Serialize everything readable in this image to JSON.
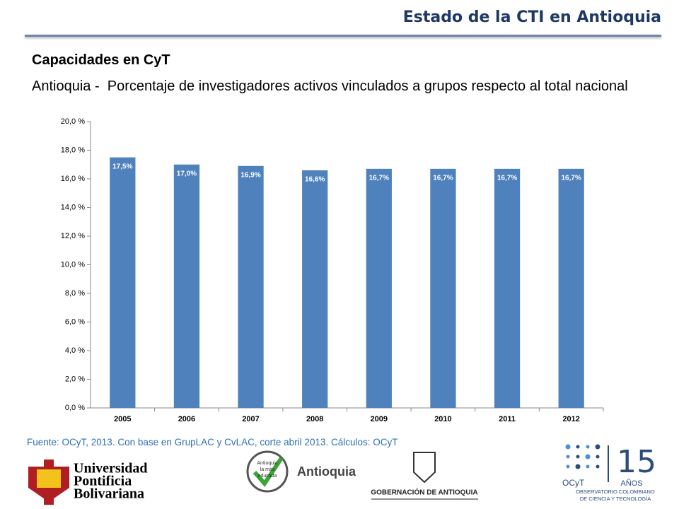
{
  "header": "Estado de la CTI en Antioquia",
  "section_title": "Capacidades en CyT",
  "chart_data": {
    "type": "bar",
    "title": "Antioquia -  Porcentaje de investigadores activos vinculados a grupos respecto al total nacional",
    "categories": [
      "2005",
      "2006",
      "2007",
      "2008",
      "2009",
      "2010",
      "2011",
      "2012"
    ],
    "values": [
      17.5,
      17.0,
      16.9,
      16.6,
      16.7,
      16.7,
      16.7,
      16.7
    ],
    "value_labels": [
      "17,5%",
      "17,0%",
      "16,9%",
      "16,6%",
      "16,7%",
      "16,7%",
      "16,7%",
      "16,7%"
    ],
    "color": "#4f81bd",
    "ylim": [
      0,
      20
    ],
    "yticks": [
      {
        "value": 0,
        "label": "0,0 %"
      },
      {
        "value": 2,
        "label": "2,0 %"
      },
      {
        "value": 4,
        "label": "4,0 %"
      },
      {
        "value": 6,
        "label": "6,0 %"
      },
      {
        "value": 8,
        "label": "8,0 %"
      },
      {
        "value": 10,
        "label": "10,0 %"
      },
      {
        "value": 12,
        "label": "12,0 %"
      },
      {
        "value": 14,
        "label": "14,0 %"
      },
      {
        "value": 16,
        "label": "16,0 %"
      },
      {
        "value": 18,
        "label": "18,0 %"
      },
      {
        "value": 20,
        "label": "20,0 %"
      }
    ],
    "grid": false
  },
  "source": "Fuente: OCyT, 2013. Con base en GrupLAC y CvLAC, corte abril 2013. Cálculos: OCyT",
  "logos": {
    "upb": [
      "Universidad",
      "Pontificia",
      "Bolivariana"
    ],
    "antioquia_seal": [
      "Antioquia",
      "la más",
      "educada"
    ],
    "antioquia": "Antioquia",
    "gobernacion": "GOBERNACIÓN DE ANTIOQUIA",
    "ocyt": "OCyT",
    "anniversary": [
      "15",
      "AÑOS"
    ],
    "ocyt_name": [
      "OBSERVATORIO COLOMBIANO",
      "DE CIENCIA Y TECNOLOGÍA"
    ]
  }
}
